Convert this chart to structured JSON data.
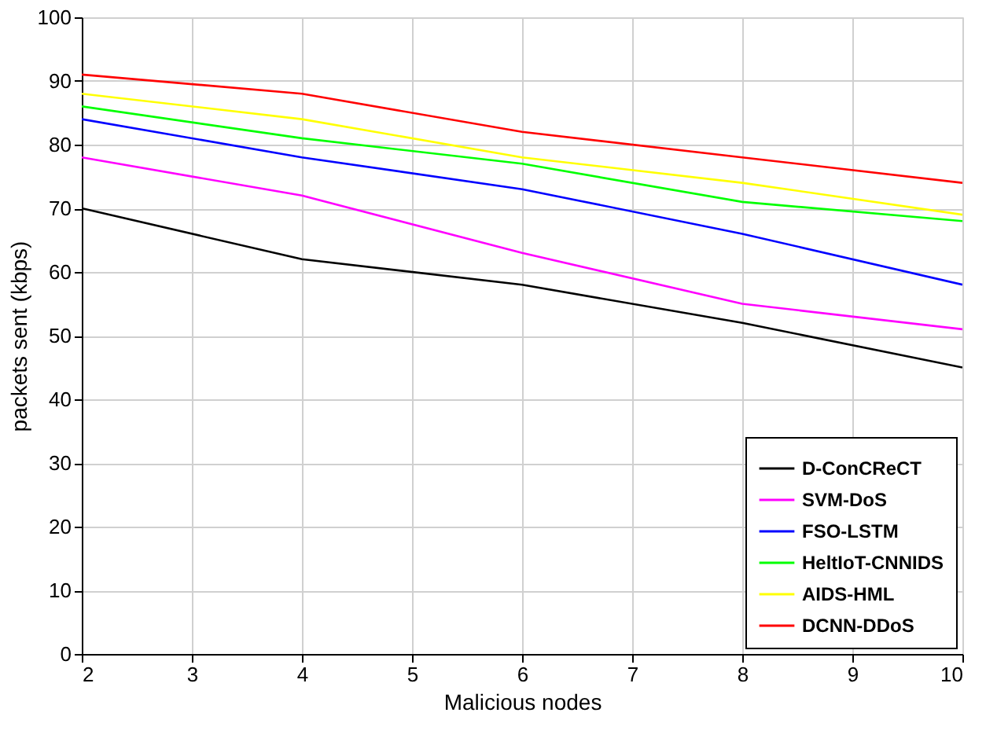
{
  "chart_data": {
    "type": "line",
    "xlabel": "Malicious nodes",
    "ylabel": "packets sent (kbps)",
    "x": [
      2,
      4,
      6,
      8,
      10
    ],
    "xlim": [
      2,
      10
    ],
    "xticks": [
      2,
      3,
      4,
      5,
      6,
      7,
      8,
      9,
      10
    ],
    "ylim": [
      0,
      100
    ],
    "yticks": [
      0,
      10,
      20,
      30,
      40,
      50,
      60,
      70,
      80,
      90,
      100
    ],
    "grid": true,
    "legend": "bottom right",
    "marker": "none",
    "line_style": "solid",
    "series": [
      {
        "name": "D-ConCReCT",
        "color": "#000000",
        "values": [
          70,
          62,
          58,
          52,
          45
        ]
      },
      {
        "name": "SVM-DoS",
        "color": "#ff00ff",
        "values": [
          78,
          72,
          63,
          55,
          51
        ]
      },
      {
        "name": "FSO-LSTM",
        "color": "#0000ff",
        "values": [
          84,
          78,
          73,
          66,
          58
        ]
      },
      {
        "name": "HeltIoT-CNNIDS",
        "color": "#00ff00",
        "values": [
          86,
          81,
          77,
          71,
          68
        ]
      },
      {
        "name": "AIDS-HML",
        "color": "#ffff00",
        "values": [
          88,
          84,
          78,
          74,
          69
        ]
      },
      {
        "name": "DCNN-DDoS",
        "color": "#ff0000",
        "values": [
          91,
          88,
          82,
          78,
          74
        ]
      }
    ]
  }
}
